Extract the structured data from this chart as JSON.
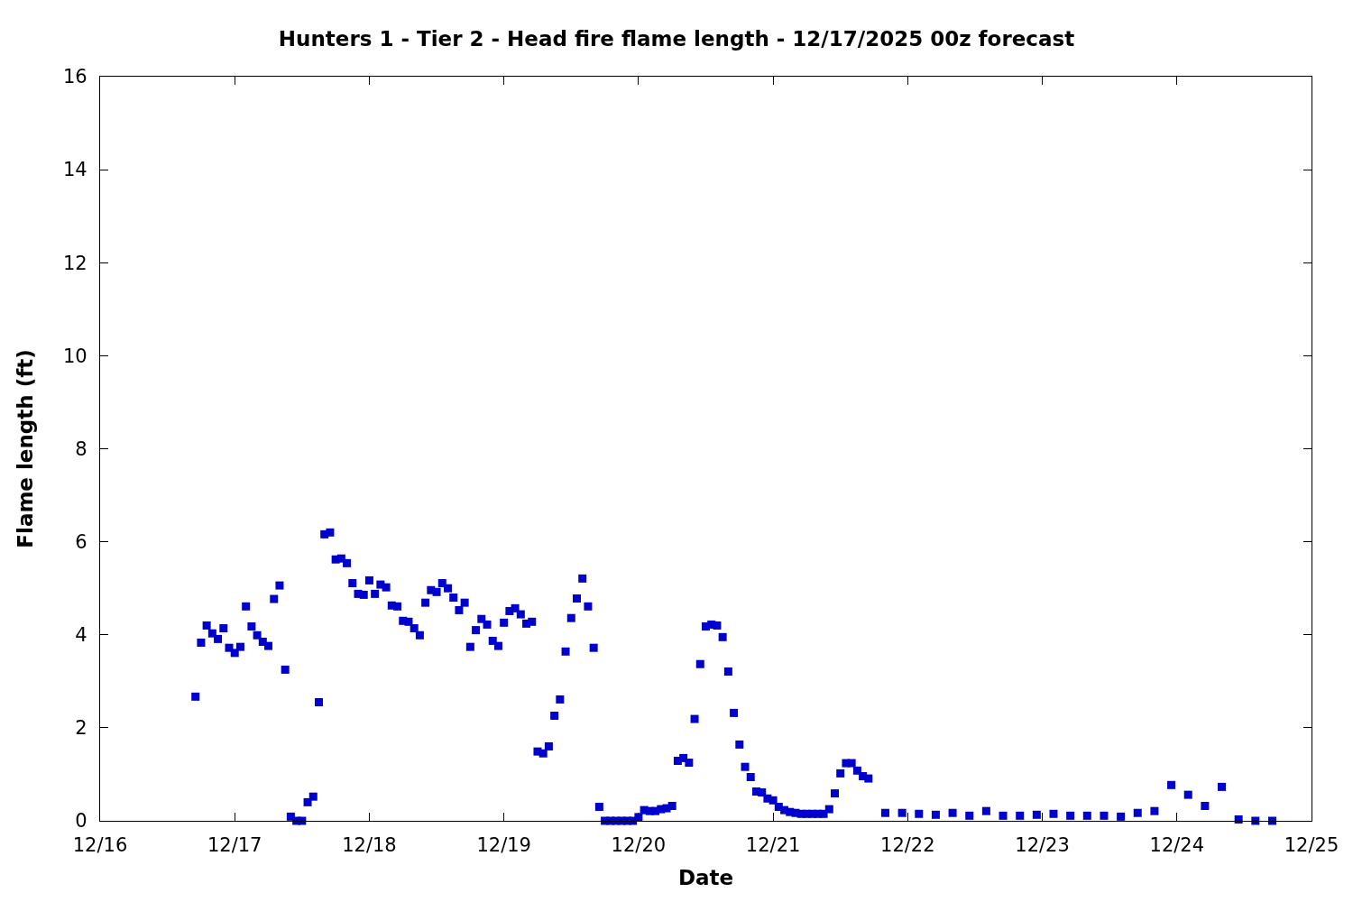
{
  "chart_data": {
    "type": "scatter",
    "title": "Hunters 1 - Tier 2 - Head fire flame length - 12/17/2025 00z forecast",
    "xlabel": "Date",
    "ylabel": "Flame length (ft)",
    "x": [
      "2025-12-16T17:00",
      "2025-12-16T18:00",
      "2025-12-16T19:00",
      "2025-12-16T20:00",
      "2025-12-16T21:00",
      "2025-12-16T22:00",
      "2025-12-16T23:00",
      "2025-12-17T00:00",
      "2025-12-17T01:00",
      "2025-12-17T02:00",
      "2025-12-17T03:00",
      "2025-12-17T04:00",
      "2025-12-17T05:00",
      "2025-12-17T06:00",
      "2025-12-17T07:00",
      "2025-12-17T08:00",
      "2025-12-17T09:00",
      "2025-12-17T10:00",
      "2025-12-17T11:00",
      "2025-12-17T12:00",
      "2025-12-17T13:00",
      "2025-12-17T14:00",
      "2025-12-17T15:00",
      "2025-12-17T16:00",
      "2025-12-17T17:00",
      "2025-12-17T18:00",
      "2025-12-17T19:00",
      "2025-12-17T20:00",
      "2025-12-17T21:00",
      "2025-12-17T22:00",
      "2025-12-17T23:00",
      "2025-12-18T00:00",
      "2025-12-18T01:00",
      "2025-12-18T02:00",
      "2025-12-18T03:00",
      "2025-12-18T04:00",
      "2025-12-18T05:00",
      "2025-12-18T06:00",
      "2025-12-18T07:00",
      "2025-12-18T08:00",
      "2025-12-18T09:00",
      "2025-12-18T10:00",
      "2025-12-18T11:00",
      "2025-12-18T12:00",
      "2025-12-18T13:00",
      "2025-12-18T14:00",
      "2025-12-18T15:00",
      "2025-12-18T16:00",
      "2025-12-18T17:00",
      "2025-12-18T18:00",
      "2025-12-18T19:00",
      "2025-12-18T20:00",
      "2025-12-18T21:00",
      "2025-12-18T22:00",
      "2025-12-18T23:00",
      "2025-12-19T00:00",
      "2025-12-19T01:00",
      "2025-12-19T02:00",
      "2025-12-19T03:00",
      "2025-12-19T04:00",
      "2025-12-19T05:00",
      "2025-12-19T06:00",
      "2025-12-19T07:00",
      "2025-12-19T08:00",
      "2025-12-19T09:00",
      "2025-12-19T10:00",
      "2025-12-19T11:00",
      "2025-12-19T12:00",
      "2025-12-19T13:00",
      "2025-12-19T14:00",
      "2025-12-19T15:00",
      "2025-12-19T16:00",
      "2025-12-19T17:00",
      "2025-12-19T18:00",
      "2025-12-19T19:00",
      "2025-12-19T20:00",
      "2025-12-19T21:00",
      "2025-12-19T22:00",
      "2025-12-19T23:00",
      "2025-12-20T00:00",
      "2025-12-20T01:00",
      "2025-12-20T02:00",
      "2025-12-20T03:00",
      "2025-12-20T04:00",
      "2025-12-20T05:00",
      "2025-12-20T06:00",
      "2025-12-20T07:00",
      "2025-12-20T08:00",
      "2025-12-20T09:00",
      "2025-12-20T10:00",
      "2025-12-20T11:00",
      "2025-12-20T12:00",
      "2025-12-20T13:00",
      "2025-12-20T14:00",
      "2025-12-20T15:00",
      "2025-12-20T16:00",
      "2025-12-20T17:00",
      "2025-12-20T18:00",
      "2025-12-20T19:00",
      "2025-12-20T20:00",
      "2025-12-20T21:00",
      "2025-12-20T22:00",
      "2025-12-20T23:00",
      "2025-12-21T00:00",
      "2025-12-21T01:00",
      "2025-12-21T02:00",
      "2025-12-21T03:00",
      "2025-12-21T04:00",
      "2025-12-21T05:00",
      "2025-12-21T06:00",
      "2025-12-21T07:00",
      "2025-12-21T08:00",
      "2025-12-21T09:00",
      "2025-12-21T10:00",
      "2025-12-21T11:00",
      "2025-12-21T12:00",
      "2025-12-21T13:00",
      "2025-12-21T14:00",
      "2025-12-21T15:00",
      "2025-12-21T16:00",
      "2025-12-21T17:00",
      "2025-12-21T20:00",
      "2025-12-21T23:00",
      "2025-12-22T02:00",
      "2025-12-22T05:00",
      "2025-12-22T08:00",
      "2025-12-22T11:00",
      "2025-12-22T14:00",
      "2025-12-22T17:00",
      "2025-12-22T20:00",
      "2025-12-22T23:00",
      "2025-12-23T02:00",
      "2025-12-23T05:00",
      "2025-12-23T08:00",
      "2025-12-23T11:00",
      "2025-12-23T14:00",
      "2025-12-23T17:00",
      "2025-12-23T20:00",
      "2025-12-23T23:00",
      "2025-12-24T02:00",
      "2025-12-24T05:00",
      "2025-12-24T08:00",
      "2025-12-24T11:00",
      "2025-12-24T14:00",
      "2025-12-24T17:00"
    ],
    "values": [
      2.67,
      3.83,
      4.2,
      4.03,
      3.91,
      4.14,
      3.72,
      3.61,
      3.74,
      4.61,
      4.18,
      3.99,
      3.85,
      3.76,
      4.77,
      5.06,
      3.25,
      0.09,
      0,
      0,
      0.4,
      0.52,
      2.55,
      6.16,
      6.2,
      5.62,
      5.64,
      5.54,
      5.11,
      4.88,
      4.86,
      5.17,
      4.88,
      5.08,
      5.02,
      4.63,
      4.61,
      4.3,
      4.28,
      4.14,
      3.99,
      4.69,
      4.96,
      4.92,
      5.11,
      5.0,
      4.8,
      4.53,
      4.69,
      3.74,
      4.1,
      4.34,
      4.22,
      3.87,
      3.76,
      4.26,
      4.51,
      4.57,
      4.44,
      4.24,
      4.28,
      1.49,
      1.45,
      1.6,
      2.26,
      2.61,
      3.64,
      4.36,
      4.78,
      5.21,
      4.61,
      3.72,
      0.3,
      0,
      0,
      0,
      0,
      0,
      0,
      0.08,
      0.23,
      0.21,
      0.21,
      0.25,
      0.27,
      0.32,
      1.29,
      1.35,
      1.25,
      2.19,
      3.37,
      4.18,
      4.22,
      4.2,
      3.95,
      3.21,
      2.32,
      1.64,
      1.16,
      0.94,
      0.63,
      0.61,
      0.48,
      0.44,
      0.3,
      0.23,
      0.19,
      0.17,
      0.15,
      0.15,
      0.15,
      0.15,
      0.15,
      0.25,
      0.59,
      1.02,
      1.24,
      1.24,
      1.08,
      0.96,
      0.91,
      0.17,
      0.17,
      0.15,
      0.13,
      0.17,
      0.11,
      0.21,
      0.11,
      0.11,
      0.13,
      0.15,
      0.11,
      0.11,
      0.11,
      0.09,
      0.17,
      0.21,
      0.77,
      0.56,
      0.32,
      0.73,
      0.03,
      0,
      0
    ],
    "color": "#0000cc",
    "marker": "square",
    "xlim": [
      "2025-12-16",
      "2025-12-25"
    ],
    "xticks": [
      {
        "value": "2025-12-16",
        "label": "12/16"
      },
      {
        "value": "2025-12-17",
        "label": "12/17"
      },
      {
        "value": "2025-12-18",
        "label": "12/18"
      },
      {
        "value": "2025-12-19",
        "label": "12/19"
      },
      {
        "value": "2025-12-20",
        "label": "12/20"
      },
      {
        "value": "2025-12-21",
        "label": "12/21"
      },
      {
        "value": "2025-12-22",
        "label": "12/22"
      },
      {
        "value": "2025-12-23",
        "label": "12/23"
      },
      {
        "value": "2025-12-24",
        "label": "12/24"
      },
      {
        "value": "2025-12-25",
        "label": "12/25"
      }
    ],
    "ylim": [
      0,
      16
    ],
    "yticks": [
      0,
      2,
      4,
      6,
      8,
      10,
      12,
      14,
      16
    ]
  }
}
